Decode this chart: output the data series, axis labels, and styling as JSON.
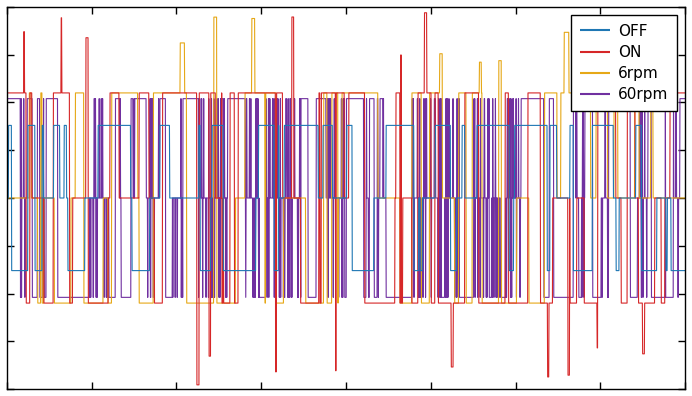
{
  "title": "",
  "xlabel": "",
  "ylabel": "",
  "colors": {
    "60rpm": "#1f77b4",
    "6rpm": "#d62728",
    "ON": "#e6a817",
    "OFF": "#7030A0"
  },
  "legend_labels": [
    "60rpm",
    "6rpm",
    "ON",
    "OFF"
  ],
  "n_points": 2000,
  "ylim": [
    -1.0,
    1.0
  ],
  "background_color": "#ffffff",
  "figure_background": "#ffffff",
  "amp_60rpm": 0.38,
  "amp_6rpm": 0.55,
  "amp_on": 0.55,
  "amp_off": 0.52
}
